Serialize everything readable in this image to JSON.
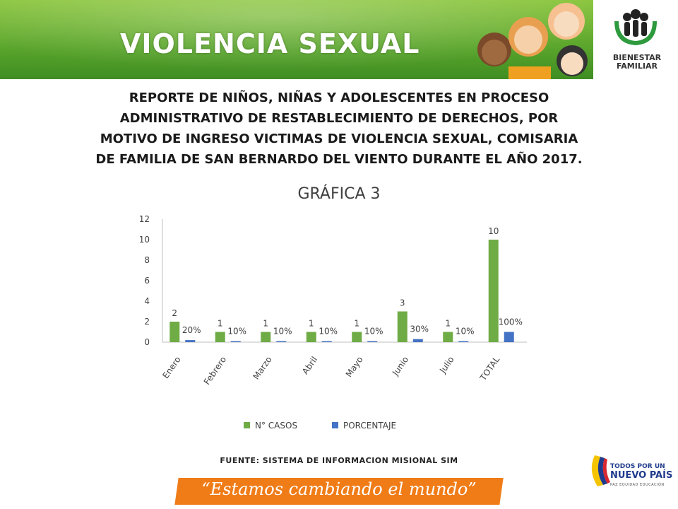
{
  "header": {
    "title": "VIOLENCIA SEXUAL",
    "logo_text_line1": "BIENESTAR",
    "logo_text_line2": "FAMILIAR"
  },
  "subtitle": {
    "lines": [
      "REPORTE DE NIÑOS, NIÑAS Y ADOLESCENTES EN PROCESO",
      "ADMINISTRATIVO DE RESTABLECIMIENTO DE DERECHOS, POR",
      "MOTIVO DE INGRESO VICTIMAS DE VIOLENCIA SEXUAL, COMISARIA",
      "DE FAMILIA DE SAN BERNARDO DEL VIENTO DURANTE EL AÑO 2017."
    ]
  },
  "footer": {
    "source": "FUENTE: SISTEMA DE INFORMACION MISIONAL SIM",
    "slogan": "“Estamos cambiando el mundo”",
    "pais_line1": "TODOS POR UN",
    "pais_line2": "NUEVO PAÍS",
    "pais_line3": "PAZ EQUIDAD EDUCACIÓN"
  },
  "colors": {
    "green": "#6fac46",
    "blue": "#4472c4",
    "header_green": "#5aa52c",
    "orange": "#f07c18"
  },
  "chart_data": {
    "type": "bar",
    "title": "GRÁFICA 3",
    "categories": [
      "Enero",
      "Febrero",
      "Marzo",
      "Abril",
      "Mayo",
      "Junio",
      "Julio",
      "TOTAL"
    ],
    "series": [
      {
        "name": "N° CASOS",
        "values": [
          2,
          1,
          1,
          1,
          1,
          3,
          1,
          10
        ],
        "labels": [
          "2",
          "1",
          "1",
          "1",
          "1",
          "3",
          "1",
          "10"
        ],
        "color": "#6fac46"
      },
      {
        "name": "PORCENTAJE",
        "values": [
          0.2,
          0.1,
          0.1,
          0.1,
          0.1,
          0.3,
          0.1,
          1.0
        ],
        "labels": [
          "20%",
          "10%",
          "10%",
          "10%",
          "10%",
          "30%",
          "10%",
          "100%"
        ],
        "color": "#4472c4"
      }
    ],
    "ylim": [
      0,
      12
    ],
    "yticks": [
      0,
      2,
      4,
      6,
      8,
      10,
      12
    ],
    "grid": false,
    "legend": "bottom"
  }
}
